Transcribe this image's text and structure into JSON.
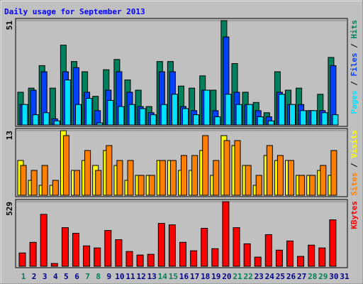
{
  "chart_data": [
    {
      "type": "bar",
      "title": "Daily usage for September 2013",
      "ylim": [
        0,
        51
      ],
      "yticks": [
        51
      ],
      "legend_separator": " / ",
      "series": [
        {
          "name": "Hits",
          "color": "#00805C",
          "values": [
            16,
            18,
            29,
            18,
            39,
            31,
            26,
            14,
            27,
            32,
            22,
            17,
            9,
            31,
            31,
            19,
            18,
            24,
            17,
            51,
            30,
            16,
            11,
            6,
            26,
            17,
            18,
            7,
            15,
            33,
            0
          ]
        },
        {
          "name": "Files",
          "color": "#0040FF",
          "values": [
            10,
            17,
            26,
            3,
            26,
            28,
            16,
            7,
            17,
            26,
            16,
            9,
            6,
            26,
            26,
            9,
            7,
            17,
            7,
            43,
            16,
            10,
            7,
            4,
            16,
            10,
            10,
            7,
            7,
            29,
            0
          ]
        },
        {
          "name": "Pages",
          "color": "#00E0FF",
          "values": [
            10,
            5,
            6,
            2,
            22,
            10,
            13,
            1,
            12,
            9,
            10,
            8,
            5,
            10,
            15,
            8,
            5,
            17,
            4,
            15,
            10,
            10,
            4,
            2,
            15,
            10,
            7,
            7,
            6,
            5,
            0
          ]
        }
      ]
    },
    {
      "type": "bar",
      "ylim": [
        0,
        13
      ],
      "yticks": [
        13
      ],
      "legend_separator": " / ",
      "series": [
        {
          "name": "Visits",
          "color": "#FFFF00",
          "values": [
            7,
            3,
            2,
            2,
            13,
            5,
            7,
            6,
            9,
            6,
            3,
            4,
            4,
            7,
            7,
            5,
            5,
            9,
            4,
            12,
            10,
            6,
            2,
            8,
            7,
            7,
            4,
            4,
            5,
            4,
            0
          ]
        },
        {
          "name": "Sites",
          "color": "#FF8000",
          "values": [
            6,
            5,
            6,
            3,
            12,
            5,
            9,
            5,
            10,
            7,
            7,
            4,
            4,
            7,
            7,
            8,
            8,
            12,
            7,
            11,
            11,
            6,
            4,
            10,
            8,
            7,
            4,
            4,
            6,
            9,
            0
          ]
        }
      ]
    },
    {
      "type": "bar",
      "ylim": [
        0,
        529
      ],
      "yticks": [
        529
      ],
      "categories": [
        "1",
        "2",
        "3",
        "4",
        "5",
        "6",
        "7",
        "8",
        "9",
        "10",
        "11",
        "12",
        "13",
        "14",
        "15",
        "16",
        "17",
        "18",
        "19",
        "20",
        "21",
        "22",
        "23",
        "24",
        "25",
        "26",
        "27",
        "28",
        "29",
        "30",
        "31"
      ],
      "category_colors": [
        "#00805C",
        "#00008B",
        "#00008B",
        "#00008B",
        "#00008B",
        "#00008B",
        "#00805C",
        "#00805C",
        "#00008B",
        "#00008B",
        "#00008B",
        "#00008B",
        "#00008B",
        "#00805C",
        "#00805C",
        "#00008B",
        "#00008B",
        "#00008B",
        "#00008B",
        "#00008B",
        "#00805C",
        "#00805C",
        "#00008B",
        "#00008B",
        "#00008B",
        "#00008B",
        "#00008B",
        "#00805C",
        "#00805C",
        "#00008B",
        "#00008B"
      ],
      "series": [
        {
          "name": "KBytes",
          "color": "#FF0000",
          "values": [
            109,
            196,
            425,
            23,
            316,
            270,
            167,
            150,
            293,
            218,
            121,
            92,
            98,
            351,
            339,
            196,
            127,
            311,
            144,
            529,
            316,
            184,
            75,
            259,
            132,
            207,
            81,
            173,
            150,
            380,
            0
          ]
        }
      ]
    }
  ]
}
